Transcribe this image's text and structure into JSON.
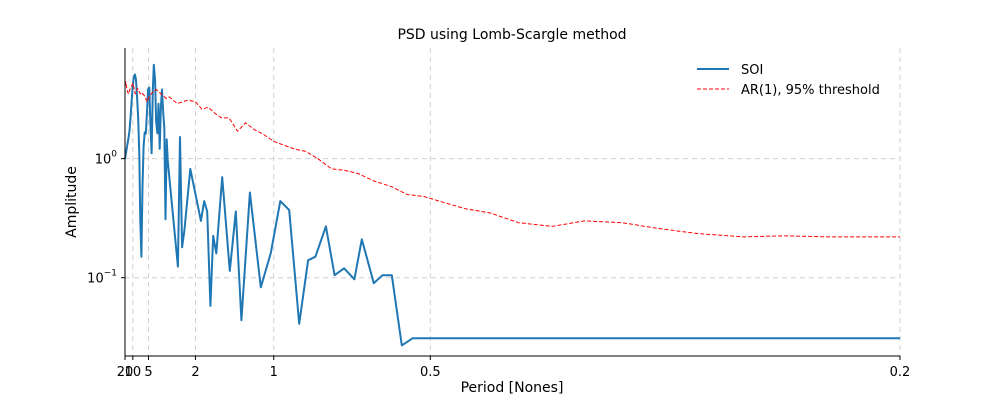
{
  "chart_data": {
    "type": "line",
    "title": "PSD using Lomb-Scargle method",
    "xlabel": "Period [Nones]",
    "ylabel": "Amplitude",
    "x_scale": "reciprocal",
    "y_scale": "log",
    "xlim": [
      20,
      0.2
    ],
    "ylim": [
      0.022,
      8.5
    ],
    "x_ticks": [
      {
        "value": 20,
        "label": "20"
      },
      {
        "value": 10,
        "label": "10"
      },
      {
        "value": 5,
        "label": "5"
      },
      {
        "value": 2,
        "label": "2"
      },
      {
        "value": 1,
        "label": "1"
      },
      {
        "value": 0.5,
        "label": "0.5"
      },
      {
        "value": 0.2,
        "label": "0.2"
      }
    ],
    "y_ticks": [
      {
        "value": 1,
        "base": "10",
        "exp": "0"
      },
      {
        "value": 0.1,
        "base": "10",
        "exp": "−1"
      }
    ],
    "grid": true,
    "legend_position": "top-right",
    "series": [
      {
        "name": "SOI",
        "color": "#1f77b4",
        "style": "solid",
        "x": [
          20,
          17.54,
          15.63,
          14.08,
          12.82,
          11.76,
          10.87,
          10.1,
          9.43,
          8.85,
          8.33,
          7.87,
          7.46,
          7.09,
          6.76,
          6.45,
          6.17,
          5.92,
          5.68,
          5.46,
          5.26,
          5.06,
          4.88,
          4.72,
          4.55,
          4.4,
          4.27,
          4.13,
          4.02,
          3.89,
          3.79,
          3.68,
          3.58,
          3.49,
          3.4,
          3.32,
          3.24,
          3.16,
          3.09,
          2.58,
          2.49,
          2.41,
          2.33,
          2.14,
          1.94,
          1.87,
          1.8,
          1.74,
          1.68,
          1.63,
          1.58,
          1.49,
          1.39,
          1.32,
          1.26,
          1.18,
          1.09,
          1.02,
          0.96,
          0.91,
          0.86,
          0.82,
          0.79,
          0.75,
          0.72,
          0.69,
          0.66,
          0.64,
          0.61,
          0.59,
          0.57,
          0.55,
          0.53,
          0.51,
          0.49,
          0.47,
          0.455,
          0.44,
          0.42,
          0.405,
          0.39,
          0.375,
          0.36,
          0.347,
          0.336,
          0.323,
          0.311,
          0.298,
          0.286,
          0.274,
          0.262,
          0.25,
          0.238,
          0.226,
          0.214,
          0.203,
          0.2
        ],
        "y": [
          1.0,
          1.13,
          1.29,
          1.46,
          1.68,
          2.19,
          3.0,
          4.03,
          4.8,
          5.09,
          4.6,
          3.27,
          2.18,
          1.09,
          0.3,
          0.15,
          0.59,
          1.27,
          1.66,
          1.62,
          2.39,
          3.83,
          3.95,
          2.09,
          1.11,
          3.73,
          6.15,
          4.57,
          2.06,
          1.63,
          2.89,
          1.21,
          2.73,
          3.81,
          2.46,
          1.82,
          0.31,
          1.45,
          0.95,
          0.124,
          1.52,
          0.18,
          0.25,
          0.82,
          0.4,
          0.3,
          0.44,
          0.36,
          0.058,
          0.225,
          0.16,
          0.7,
          0.114,
          0.36,
          0.044,
          0.52,
          0.083,
          0.16,
          0.44,
          0.37,
          0.041,
          0.14,
          0.15,
          0.27,
          0.105,
          0.12,
          0.097,
          0.21,
          0.09,
          0.105,
          0.105,
          0.027,
          0.031,
          0.031,
          0.031,
          0.031,
          0.031,
          0.031,
          0.031,
          0.031,
          0.031,
          0.031,
          0.031,
          0.031,
          0.031,
          0.031,
          0.031,
          0.031,
          0.031,
          0.031,
          0.031,
          0.031,
          0.031,
          0.031,
          0.031,
          0.031,
          0.031
        ]
      },
      {
        "name": "AR(1), 95% threshold",
        "color": "#ff0000",
        "style": "dashed",
        "x": [
          20,
          18.0,
          16.2,
          14.7,
          13.5,
          12.4,
          11.5,
          10.7,
          10.0,
          9.3,
          8.7,
          8.2,
          7.7,
          7.2,
          6.8,
          6.4,
          6.1,
          5.8,
          5.5,
          5.2,
          4.9,
          4.6,
          4.3,
          4.0,
          3.7,
          3.45,
          3.2,
          3.0,
          2.8,
          2.6,
          2.4,
          2.2,
          2.0,
          1.85,
          1.72,
          1.6,
          1.5,
          1.4,
          1.3,
          1.22,
          1.14,
          1.07,
          1.0,
          0.94,
          0.88,
          0.83,
          0.78,
          0.73,
          0.69,
          0.65,
          0.61,
          0.57,
          0.54,
          0.51,
          0.48,
          0.45,
          0.42,
          0.39,
          0.36,
          0.335,
          0.31,
          0.29,
          0.27,
          0.25,
          0.235,
          0.22,
          0.21,
          0.2
        ],
        "y": [
          4.1,
          4.4,
          3.9,
          3.6,
          3.5,
          3.8,
          3.9,
          4.1,
          4.3,
          3.9,
          3.5,
          3.6,
          3.9,
          3.7,
          3.5,
          3.6,
          3.5,
          3.4,
          3.2,
          3.0,
          3.3,
          3.5,
          3.7,
          3.8,
          3.6,
          3.4,
          3.2,
          3.3,
          3.1,
          2.9,
          3.0,
          3.1,
          3.0,
          2.6,
          2.7,
          2.4,
          2.2,
          2.2,
          1.7,
          2.0,
          1.75,
          1.6,
          1.4,
          1.3,
          1.2,
          1.15,
          1.0,
          0.82,
          0.8,
          0.75,
          0.65,
          0.58,
          0.5,
          0.48,
          0.43,
          0.38,
          0.35,
          0.29,
          0.27,
          0.3,
          0.29,
          0.26,
          0.235,
          0.22,
          0.225,
          0.22,
          0.22,
          0.22
        ]
      }
    ]
  }
}
